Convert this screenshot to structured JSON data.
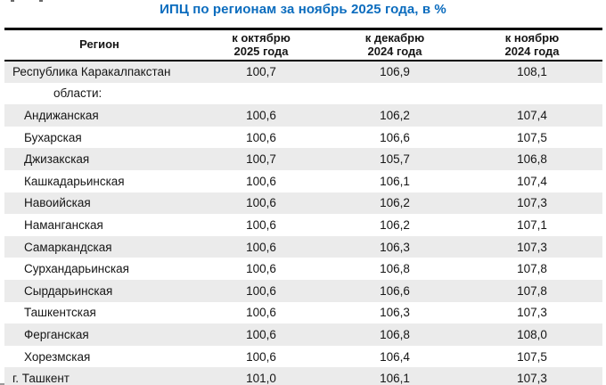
{
  "page": {
    "title": "ИПЦ по регионам за ноябрь 2025 года, в %",
    "title_style": "color:#0b6cbe"
  },
  "colors": {
    "accent_blue": "#0b6cbe",
    "stripe_gray": "#ebebeb",
    "border_black": "#000000"
  },
  "table": {
    "columns": {
      "region": "Регион",
      "to_oct_2025": "к октябрю\n2025 года",
      "to_dec_2024": "к декабрю\n2024 года",
      "to_nov_2024": "к ноябрю\n2024 года"
    },
    "rows": [
      {
        "region": "Республика Каракалпакстан",
        "values": [
          "100,7",
          "106,9",
          "108,1"
        ]
      },
      {
        "region": "области:",
        "values": [
          "",
          "",
          ""
        ]
      },
      {
        "region": "Андижанская",
        "values": [
          "100,6",
          "106,2",
          "107,4"
        ]
      },
      {
        "region": "Бухарская",
        "values": [
          "100,6",
          "106,6",
          "107,5"
        ]
      },
      {
        "region": "Джизакская",
        "values": [
          "100,7",
          "105,7",
          "106,8"
        ]
      },
      {
        "region": "Кашкадарьинская",
        "values": [
          "100,6",
          "106,1",
          "107,4"
        ]
      },
      {
        "region": "Навоийская",
        "values": [
          "100,6",
          "106,2",
          "107,3"
        ]
      },
      {
        "region": "Наманганская",
        "values": [
          "100,6",
          "106,2",
          "107,1"
        ]
      },
      {
        "region": "Самаркандская",
        "values": [
          "100,6",
          "106,3",
          "107,3"
        ]
      },
      {
        "region": "Сурхандарьинская",
        "values": [
          "100,6",
          "106,8",
          "107,8"
        ]
      },
      {
        "region": "Сырдарьинская",
        "values": [
          "100,6",
          "106,6",
          "107,8"
        ]
      },
      {
        "region": "Ташкентская",
        "values": [
          "100,6",
          "106,3",
          "107,3"
        ]
      },
      {
        "region": "Ферганская",
        "values": [
          "100,6",
          "106,8",
          "108,0"
        ]
      },
      {
        "region": "Хорезмская",
        "values": [
          "100,6",
          "106,4",
          "107,5"
        ]
      },
      {
        "region": "г. Ташкент",
        "values": [
          "101,0",
          "106,1",
          "107,3"
        ]
      }
    ]
  }
}
